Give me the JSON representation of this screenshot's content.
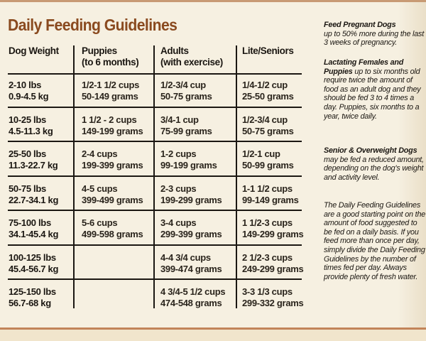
{
  "title": "Daily Feeding Guidelines",
  "table": {
    "headers": [
      {
        "line1": "Dog Weight",
        "line2": ""
      },
      {
        "line1": "Puppies",
        "line2": "(to 6 months)"
      },
      {
        "line1": "Adults",
        "line2": "(with exercise)"
      },
      {
        "line1": "Lite/Seniors",
        "line2": ""
      }
    ],
    "rows": [
      {
        "weight": [
          "2-10 lbs",
          "0.9-4.5 kg"
        ],
        "puppies": [
          "1/2-1 1/2 cups",
          "50-149 grams"
        ],
        "adults": [
          "1/2-3/4 cup",
          "50-75 grams"
        ],
        "lite": [
          "1/4-1/2 cup",
          "25-50 grams"
        ]
      },
      {
        "weight": [
          "10-25 lbs",
          "4.5-11.3 kg"
        ],
        "puppies": [
          "1 1/2 - 2 cups",
          "149-199 grams"
        ],
        "adults": [
          "3/4-1 cup",
          "75-99 grams"
        ],
        "lite": [
          "1/2-3/4 cup",
          "50-75 grams"
        ]
      },
      {
        "weight": [
          "25-50 lbs",
          "11.3-22.7 kg"
        ],
        "puppies": [
          "2-4 cups",
          "199-399 grams"
        ],
        "adults": [
          "1-2 cups",
          "99-199 grams"
        ],
        "lite": [
          "1/2-1 cup",
          "50-99 grams"
        ]
      },
      {
        "weight": [
          "50-75 lbs",
          "22.7-34.1 kg"
        ],
        "puppies": [
          "4-5 cups",
          "399-499 grams"
        ],
        "adults": [
          "2-3 cups",
          "199-299 grams"
        ],
        "lite": [
          "1-1 1/2 cups",
          "99-149 grams"
        ]
      },
      {
        "weight": [
          "75-100 lbs",
          "34.1-45.4 kg"
        ],
        "puppies": [
          "5-6 cups",
          "499-598 grams"
        ],
        "adults": [
          "3-4 cups",
          "299-399 grams"
        ],
        "lite": [
          "1 1/2-3 cups",
          "149-299 grams"
        ]
      },
      {
        "weight": [
          "100-125 lbs",
          "45.4-56.7 kg"
        ],
        "puppies": [
          "",
          ""
        ],
        "adults": [
          "4-4 3/4 cups",
          "399-474 grams"
        ],
        "lite": [
          "2 1/2-3 cups",
          "249-299 grams"
        ]
      },
      {
        "weight": [
          "125-150 lbs",
          "56.7-68 kg"
        ],
        "puppies": [
          "",
          ""
        ],
        "adults": [
          "4 3/4-5 1/2 cups",
          "474-548 grams"
        ],
        "lite": [
          "3-3 1/3 cups",
          "299-332 grams"
        ]
      }
    ]
  },
  "sidebar": {
    "pregnant": {
      "bold": "Feed Pregnant Dogs",
      "text": "up to 50% more during the last 3 weeks of pregnancy."
    },
    "lactating": {
      "bold": "Lactating Females and Puppies",
      "text": " up to six months old require twice the amount of food as an adult dog and they should be fed 3 to 4 times a day. Puppies, six months to a year, twice daily."
    },
    "senior": {
      "bold": "Senior & Overweight Dogs",
      "text": " may be fed a reduced amount, depending on the dog's weight and activity level."
    },
    "general": "The Daily Feeding Guidelines are a good starting point on the amount of food suggested to be fed on a daily basis. If you feed more than once per day, simply divide the Daily Feeding Guidelines by the number of times fed per day. Always provide plenty of fresh water."
  }
}
